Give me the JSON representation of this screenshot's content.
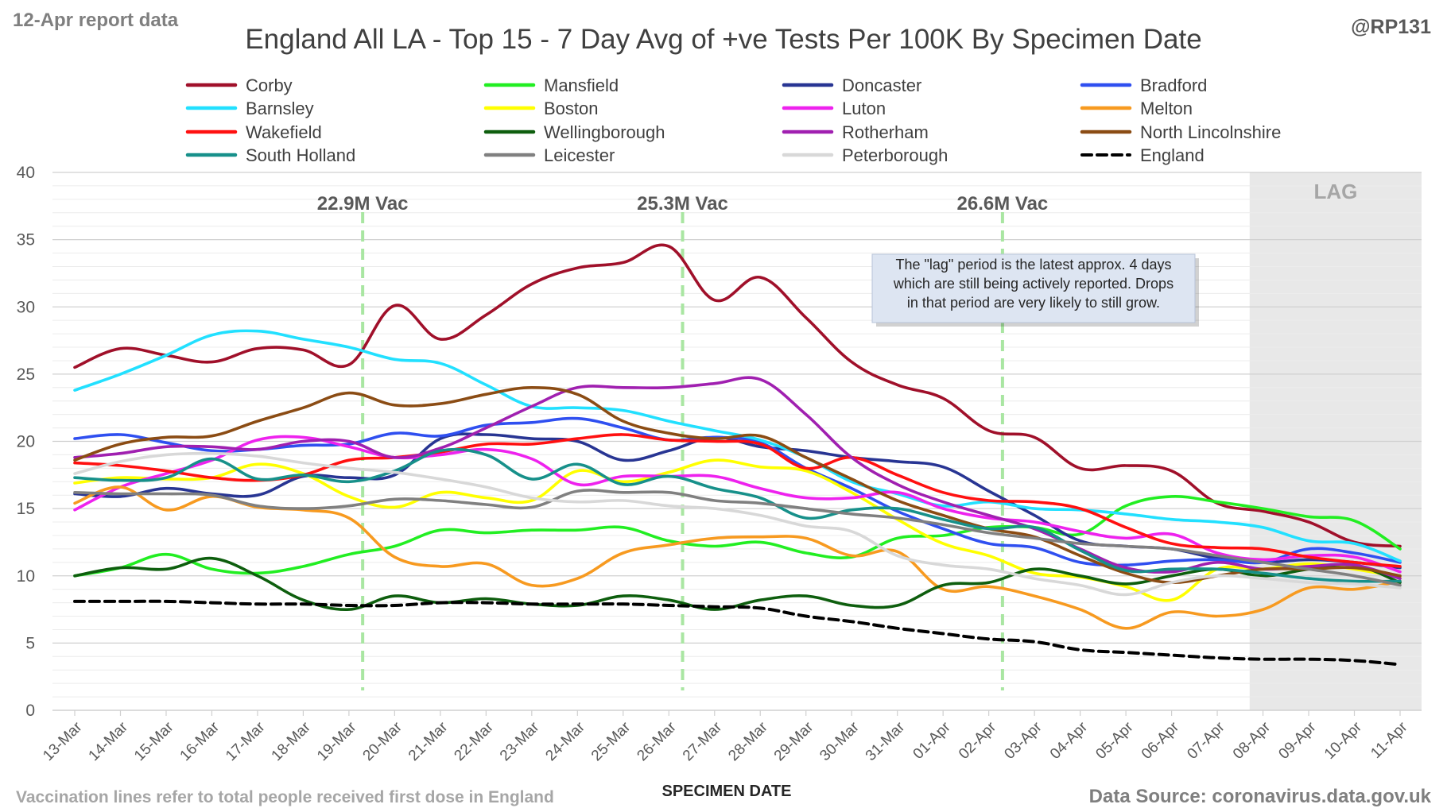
{
  "header": {
    "report_date": "12-Apr report data",
    "title": "England All LA - Top 15 - 7 Day Avg of +ve Tests Per 100K By Specimen Date",
    "handle": "@RP131"
  },
  "footer": {
    "note": "Vaccination lines refer to total people received first dose in England",
    "source": "Data Source: coronavirus.data.gov.uk"
  },
  "lag": {
    "label": "LAG",
    "note_lines": [
      "The \"lag\" period is the latest approx. 4 days",
      "which are still being actively reported.  Drops",
      "in that period are very likely to still grow."
    ]
  },
  "vaccination_markers": [
    {
      "label": "22.9M Vac",
      "position": 6.3
    },
    {
      "label": "25.3M Vac",
      "position": 13.3
    },
    {
      "label": "26.6M Vac",
      "position": 20.3
    }
  ],
  "chart_data": {
    "type": "line",
    "xlabel": "SPECIMEN DATE",
    "ylabel": "",
    "ylim": [
      0,
      40
    ],
    "yticks": [
      0,
      5,
      10,
      15,
      20,
      25,
      30,
      35,
      40
    ],
    "grid": true,
    "legend_position": "top",
    "lag_start_index": 26,
    "categories": [
      "13-Mar",
      "14-Mar",
      "15-Mar",
      "16-Mar",
      "17-Mar",
      "18-Mar",
      "19-Mar",
      "20-Mar",
      "21-Mar",
      "22-Mar",
      "23-Mar",
      "24-Mar",
      "25-Mar",
      "26-Mar",
      "27-Mar",
      "28-Mar",
      "29-Mar",
      "30-Mar",
      "31-Mar",
      "01-Apr",
      "02-Apr",
      "03-Apr",
      "04-Apr",
      "05-Apr",
      "06-Apr",
      "07-Apr",
      "08-Apr",
      "09-Apr",
      "10-Apr",
      "11-Apr"
    ],
    "series": [
      {
        "name": "Corby",
        "color": "#a0102a",
        "dash": false,
        "values": [
          25.5,
          26.9,
          26.4,
          25.9,
          26.9,
          26.8,
          25.7,
          30.1,
          27.6,
          29.4,
          31.7,
          32.9,
          33.3,
          34.5,
          30.5,
          32.2,
          29.2,
          25.9,
          24.2,
          23.2,
          20.8,
          20.3,
          18.0,
          18.2,
          17.8,
          15.4,
          14.8,
          14.0,
          12.5,
          12.2
        ]
      },
      {
        "name": "Mansfield",
        "color": "#22ee22",
        "dash": false,
        "values": [
          10.0,
          10.6,
          11.6,
          10.5,
          10.2,
          10.7,
          11.6,
          12.2,
          13.4,
          13.2,
          13.4,
          13.4,
          13.6,
          12.6,
          12.2,
          12.5,
          11.7,
          11.4,
          12.8,
          13.0,
          13.6,
          13.6,
          13.1,
          15.2,
          15.9,
          15.5,
          15.0,
          14.4,
          14.1,
          12.0
        ]
      },
      {
        "name": "Doncaster",
        "color": "#283593",
        "dash": false,
        "values": [
          16.1,
          15.9,
          16.5,
          16.1,
          16.0,
          17.4,
          17.3,
          17.5,
          20.2,
          20.5,
          20.2,
          20.0,
          18.6,
          19.3,
          20.3,
          19.6,
          19.3,
          18.8,
          18.5,
          18.1,
          16.3,
          14.5,
          12.6,
          12.2,
          12.0,
          11.3,
          11.0,
          11.2,
          11.0,
          10.6
        ]
      },
      {
        "name": "Bradford",
        "color": "#2f4ff0",
        "dash": false,
        "values": [
          20.2,
          20.5,
          19.9,
          19.3,
          19.4,
          19.7,
          19.8,
          20.6,
          20.4,
          21.2,
          21.4,
          21.7,
          21.0,
          20.1,
          20.3,
          19.9,
          18.0,
          16.5,
          14.8,
          13.5,
          12.4,
          12.1,
          11.0,
          10.8,
          11.1,
          11.2,
          11.0,
          12.0,
          11.7,
          11.0
        ]
      },
      {
        "name": "Barnsley",
        "color": "#22e0ff",
        "dash": false,
        "values": [
          23.8,
          25.0,
          26.4,
          27.9,
          28.2,
          27.6,
          27.0,
          26.1,
          25.8,
          24.2,
          22.6,
          22.5,
          22.3,
          21.5,
          20.8,
          20.1,
          18.8,
          17.0,
          16.1,
          15.2,
          15.5,
          15.0,
          14.9,
          14.6,
          14.2,
          14.0,
          13.6,
          12.6,
          12.4,
          11.1
        ]
      },
      {
        "name": "Boston",
        "color": "#ffff00",
        "dash": false,
        "values": [
          16.9,
          17.3,
          17.2,
          17.3,
          18.3,
          17.6,
          15.9,
          15.1,
          16.2,
          15.8,
          15.6,
          17.8,
          17.0,
          17.7,
          18.6,
          18.1,
          17.8,
          16.2,
          14.2,
          12.4,
          11.5,
          10.2,
          9.9,
          9.2,
          8.2,
          10.5,
          10.5,
          10.9,
          10.5,
          9.9
        ]
      },
      {
        "name": "Luton",
        "color": "#ee22ee",
        "dash": false,
        "values": [
          14.9,
          16.6,
          17.6,
          18.6,
          20.1,
          20.3,
          19.6,
          18.8,
          19.0,
          19.4,
          18.7,
          16.8,
          17.4,
          17.4,
          17.4,
          16.5,
          15.8,
          15.8,
          16.2,
          15.0,
          14.3,
          14.0,
          13.3,
          12.8,
          13.1,
          11.7,
          11.2,
          11.5,
          11.4,
          10.3
        ]
      },
      {
        "name": "Melton",
        "color": "#f79a20",
        "dash": false,
        "values": [
          15.4,
          16.6,
          14.9,
          15.9,
          15.1,
          14.9,
          14.3,
          11.4,
          10.7,
          10.9,
          9.3,
          9.8,
          11.7,
          12.3,
          12.8,
          12.9,
          12.8,
          11.5,
          11.8,
          9.0,
          9.2,
          8.5,
          7.5,
          6.1,
          7.3,
          7.0,
          7.5,
          9.1,
          9.0,
          9.6
        ]
      },
      {
        "name": "Wakefield",
        "color": "#ff1010",
        "dash": false,
        "values": [
          18.4,
          18.2,
          17.8,
          17.3,
          17.1,
          17.5,
          18.6,
          18.8,
          19.2,
          19.8,
          19.8,
          20.2,
          20.5,
          20.1,
          20.0,
          19.8,
          18.0,
          18.8,
          17.5,
          16.2,
          15.6,
          15.5,
          15.0,
          13.6,
          12.4,
          12.1,
          12.0,
          11.4,
          11.0,
          10.7
        ]
      },
      {
        "name": "Wellingborough",
        "color": "#0e5e0e",
        "dash": false,
        "values": [
          10.0,
          10.6,
          10.5,
          11.3,
          10.0,
          8.2,
          7.5,
          8.5,
          8.0,
          8.3,
          7.9,
          7.8,
          8.5,
          8.2,
          7.5,
          8.2,
          8.5,
          7.8,
          7.8,
          9.3,
          9.5,
          10.5,
          10.0,
          9.4,
          10.0,
          10.5,
          10.0,
          10.5,
          10.8,
          9.5
        ]
      },
      {
        "name": "Rotherham",
        "color": "#a020b0",
        "dash": false,
        "values": [
          18.8,
          19.1,
          19.6,
          19.6,
          19.4,
          20.0,
          20.0,
          18.8,
          19.5,
          21.0,
          22.6,
          24.0,
          24.0,
          24.0,
          24.3,
          24.6,
          22.0,
          18.8,
          16.8,
          15.5,
          14.5,
          13.5,
          12.0,
          10.6,
          10.3,
          11.0,
          10.5,
          10.7,
          10.8,
          9.8
        ]
      },
      {
        "name": "North Lincolnshire",
        "color": "#8b4c14",
        "dash": false,
        "values": [
          18.6,
          19.8,
          20.3,
          20.4,
          21.5,
          22.5,
          23.6,
          22.7,
          22.8,
          23.5,
          24.0,
          23.5,
          21.5,
          20.6,
          20.2,
          20.4,
          18.8,
          17.2,
          15.6,
          14.5,
          13.5,
          12.9,
          11.5,
          10.2,
          9.5,
          10.0,
          10.5,
          10.5,
          10.6,
          10.0
        ]
      },
      {
        "name": "South Holland",
        "color": "#17908a",
        "dash": false,
        "values": [
          17.3,
          17.1,
          17.3,
          18.7,
          17.2,
          17.5,
          17.0,
          17.8,
          19.3,
          19.0,
          17.2,
          18.3,
          16.8,
          17.4,
          16.5,
          15.8,
          14.3,
          14.9,
          15.0,
          14.2,
          13.5,
          13.6,
          11.9,
          10.4,
          10.5,
          10.5,
          10.2,
          9.8,
          9.6,
          9.6
        ]
      },
      {
        "name": "Leicester",
        "color": "#808080",
        "dash": false,
        "values": [
          16.2,
          16.1,
          16.1,
          16.0,
          15.2,
          15.0,
          15.2,
          15.7,
          15.6,
          15.3,
          15.1,
          16.3,
          16.2,
          16.2,
          15.6,
          15.4,
          15.0,
          14.6,
          14.3,
          13.8,
          13.2,
          12.8,
          12.4,
          12.2,
          12.0,
          11.5,
          11.0,
          10.5,
          10.0,
          9.3
        ]
      },
      {
        "name": "Peterborough",
        "color": "#d8d8d8",
        "dash": false,
        "values": [
          17.6,
          18.5,
          19.0,
          19.1,
          18.9,
          18.4,
          18.0,
          17.7,
          17.2,
          16.6,
          15.8,
          15.5,
          15.6,
          15.2,
          15.0,
          14.5,
          13.7,
          13.3,
          11.5,
          10.8,
          10.5,
          9.8,
          9.3,
          8.6,
          9.5,
          10.0,
          9.8,
          9.5,
          9.4,
          9.1
        ]
      },
      {
        "name": "England",
        "color": "#000000",
        "dash": true,
        "values": [
          8.1,
          8.1,
          8.1,
          8.0,
          7.9,
          7.9,
          7.8,
          7.8,
          8.0,
          8.0,
          7.9,
          7.9,
          7.9,
          7.8,
          7.7,
          7.6,
          7.0,
          6.6,
          6.1,
          5.7,
          5.3,
          5.1,
          4.5,
          4.3,
          4.1,
          3.9,
          3.8,
          3.8,
          3.7,
          3.4
        ]
      }
    ]
  }
}
